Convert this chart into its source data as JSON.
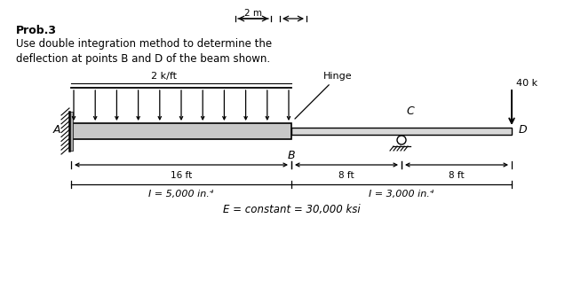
{
  "title_bold": "Prob.3",
  "title_line1": "Use double integration method to determine the",
  "title_line2": "deflection at points B and D of the beam shown.",
  "top_dim_label": "2 m",
  "load_label": "2 k/ft",
  "hinge_label": "Hinge",
  "force_label": "40 k",
  "point_A": "A",
  "point_B": "B",
  "point_C": "C",
  "point_D": "D",
  "dim1": "16 ft",
  "dim2": "8 ft",
  "dim3": "8 ft",
  "I1_label": "I = 5,000 in.⁴",
  "I2_label": "I = 3,000 in.⁴",
  "E_label": "E = constant = 30,000 ksi",
  "bg_color": "#ffffff",
  "text_color": "#000000",
  "beam_fill_left": "#c8c8c8",
  "beam_fill_right": "#d8d8d8"
}
